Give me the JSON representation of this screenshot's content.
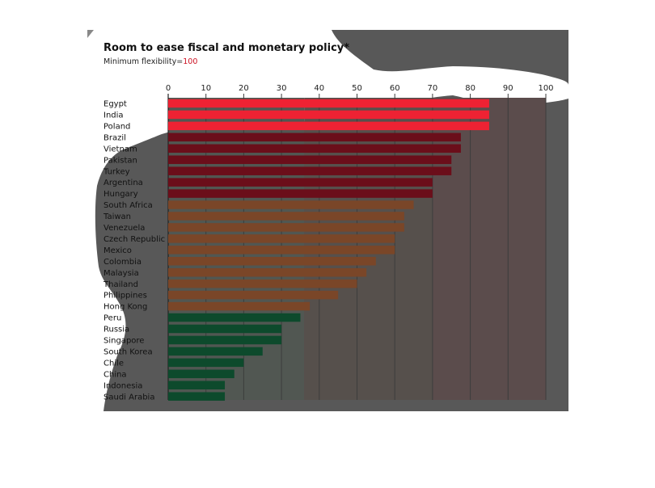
{
  "chart_data": {
    "type": "bar",
    "orientation": "horizontal",
    "title": "Room to ease fiscal and monetary policy*",
    "subtitle_prefix": "Minimum flexibility=",
    "subtitle_value": "100",
    "xlim": [
      0,
      100
    ],
    "xticks": [
      0,
      10,
      20,
      30,
      40,
      50,
      60,
      70,
      80,
      90,
      100
    ],
    "grid": true,
    "categories": [
      "Egypt",
      "India",
      "Poland",
      "Brazil",
      "Vietnam",
      "Pakistan",
      "Turkey",
      "Argentina",
      "Hungary",
      "South Africa",
      "Taiwan",
      "Venezuela",
      "Czech Republic",
      "Mexico",
      "Colombia",
      "Malaysia",
      "Thailand",
      "Philippines",
      "Hong Kong",
      "Peru",
      "Russia",
      "Singapore",
      "South Korea",
      "Chile",
      "China",
      "Indonesia",
      "Saudi Arabia"
    ],
    "values": [
      85,
      85,
      85,
      77.5,
      77.5,
      75,
      75,
      70,
      70,
      65,
      62.5,
      62.5,
      60,
      60,
      55,
      52.5,
      50,
      45,
      37.5,
      35,
      30,
      30,
      25,
      20,
      17.5,
      15,
      15
    ],
    "groups": [
      "red",
      "red",
      "red",
      "red",
      "red",
      "red",
      "red",
      "red",
      "red",
      "orange",
      "orange",
      "orange",
      "orange",
      "orange",
      "orange",
      "orange",
      "orange",
      "orange",
      "orange",
      "green",
      "green",
      "green",
      "green",
      "green",
      "green",
      "green",
      "green"
    ],
    "colors": {
      "red": "#6b0e1a",
      "red_highlight": "#ee2233",
      "orange": "#7a4628",
      "green": "#0d4a2c",
      "accent_tick": "#cc1122",
      "band_red": "#5b4c4c",
      "band_orange": "#56504c",
      "band_green": "#515752"
    }
  }
}
